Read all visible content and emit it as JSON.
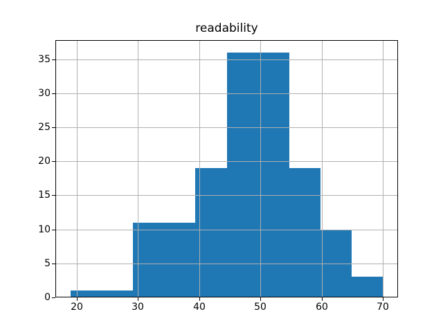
{
  "figure": {
    "background": "#ffffff"
  },
  "chart_data": {
    "type": "bar",
    "subtype": "histogram",
    "title": "readability",
    "xlabel": "",
    "ylabel": "",
    "bin_edges": [
      19.05,
      24.14,
      29.22,
      34.31,
      39.39,
      44.48,
      49.56,
      54.65,
      59.73,
      64.82,
      69.9
    ],
    "counts": [
      1,
      1,
      11,
      11,
      19,
      36,
      36,
      19,
      10,
      3
    ],
    "xticks": [
      20,
      30,
      40,
      50,
      60,
      70
    ],
    "yticks": [
      0,
      5,
      10,
      15,
      20,
      25,
      30,
      35
    ],
    "xlim": [
      16.51,
      72.44
    ],
    "ylim": [
      0,
      37.8
    ],
    "grid": true,
    "legend": false,
    "colors": {
      "bar": "#1f77b4",
      "grid": "#b0b0b0",
      "spine": "#000000",
      "text": "#000000",
      "background": "#ffffff"
    }
  }
}
